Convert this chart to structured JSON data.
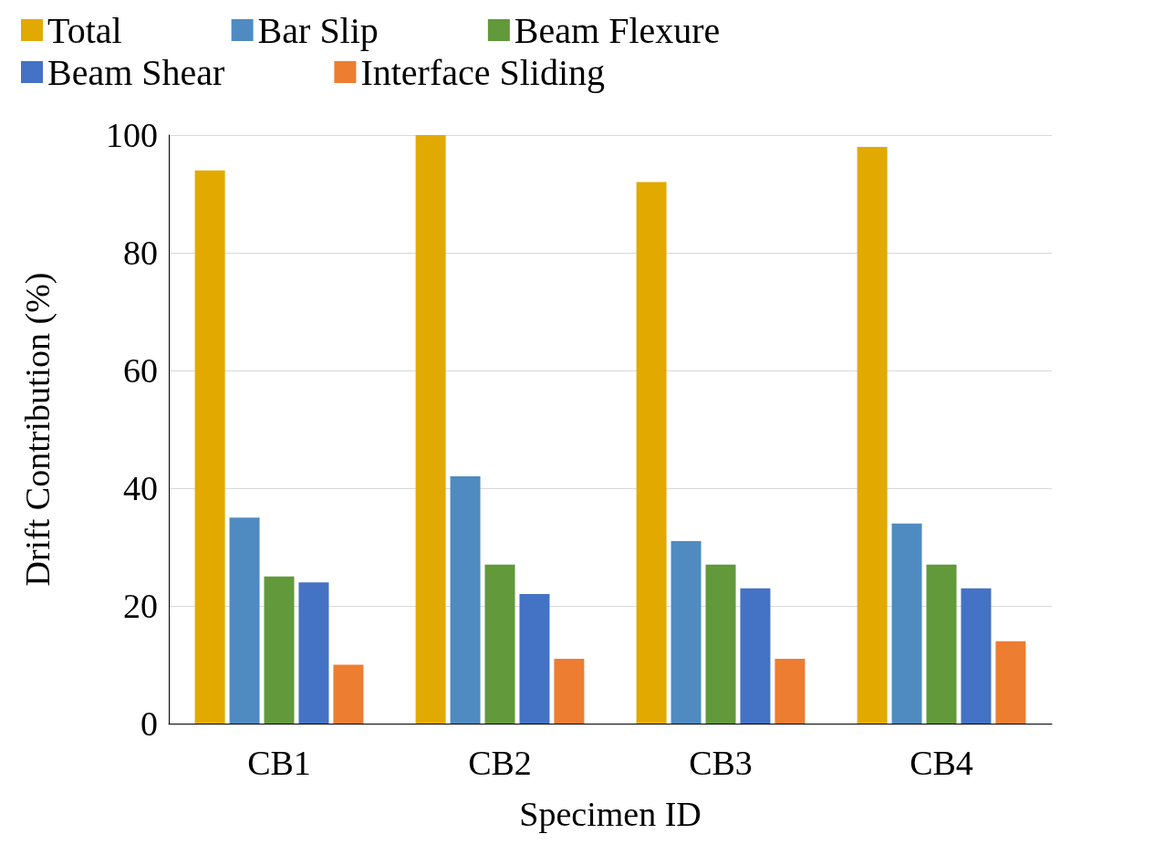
{
  "chart_data": {
    "type": "bar",
    "xlabel": "Specimen ID",
    "ylabel": "Drift Contribution (%)",
    "categories": [
      "CB1",
      "CB2",
      "CB3",
      "CB4"
    ],
    "series": [
      {
        "name": "Total",
        "color": "#e2aa00",
        "values": [
          94,
          100,
          92,
          98
        ]
      },
      {
        "name": "Bar Slip",
        "color": "#4f8bc0",
        "values": [
          35,
          42,
          31,
          34
        ]
      },
      {
        "name": "Beam Flexure",
        "color": "#61993b",
        "values": [
          25,
          27,
          27,
          27
        ]
      },
      {
        "name": "Beam Shear",
        "color": "#4472c4",
        "values": [
          24,
          22,
          23,
          23
        ]
      },
      {
        "name": "Interface Sliding",
        "color": "#ed7d31",
        "values": [
          10,
          11,
          11,
          14
        ]
      }
    ],
    "ylim": [
      0,
      100
    ],
    "yticks": [
      0,
      20,
      40,
      60,
      80,
      100
    ],
    "grid": "y",
    "legend": "top"
  }
}
